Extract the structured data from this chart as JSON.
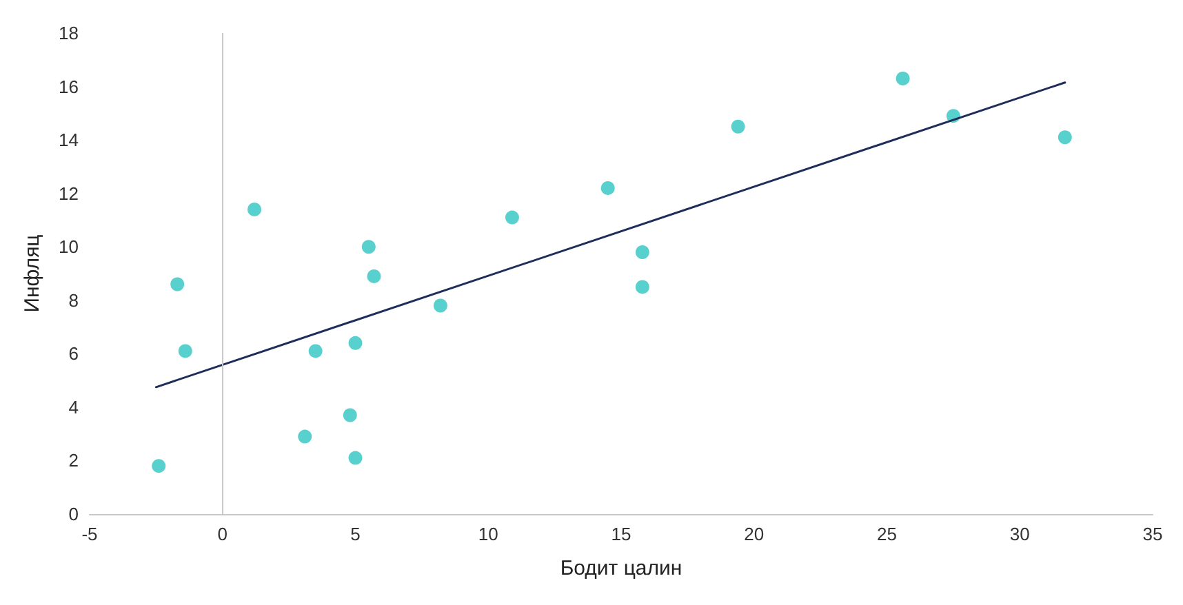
{
  "chart_data": {
    "type": "scatter",
    "xlabel": "Бодит цалин",
    "ylabel": "Инфляц",
    "xlim": [
      -5,
      35
    ],
    "xticks": [
      -5,
      0,
      5,
      10,
      15,
      20,
      25,
      30,
      35
    ],
    "ylim": [
      0,
      18
    ],
    "yticks": [
      0,
      2,
      4,
      6,
      8,
      10,
      12,
      14,
      16,
      18
    ],
    "grid": false,
    "marker": "circle",
    "ref_lines": [
      {
        "axis": "x",
        "value": 0,
        "color": "#c8c8c8"
      }
    ],
    "series": [
      {
        "color": "#2ec4c0",
        "x": [
          -2.4,
          -1.7,
          -1.4,
          1.2,
          3.1,
          3.5,
          4.8,
          5,
          5,
          5.5,
          5.7,
          8.2,
          10.9,
          14.5,
          15.8,
          15.8,
          19.4,
          25.6,
          27.5,
          31.7
        ],
        "values": [
          1.8,
          8.6,
          6.1,
          11.4,
          2.9,
          6.1,
          3.7,
          6.4,
          2.1,
          10,
          8.9,
          7.8,
          11.1,
          12.2,
          9.8,
          8.5,
          14.5,
          16.3,
          14.9,
          14.1
        ]
      },
      {
        "type": "line",
        "color": "#1f2d5a",
        "line_style": "solid",
        "marker": "none",
        "x": [
          -2.5,
          31.7
        ],
        "values": [
          4.75,
          16.15
        ]
      }
    ]
  }
}
